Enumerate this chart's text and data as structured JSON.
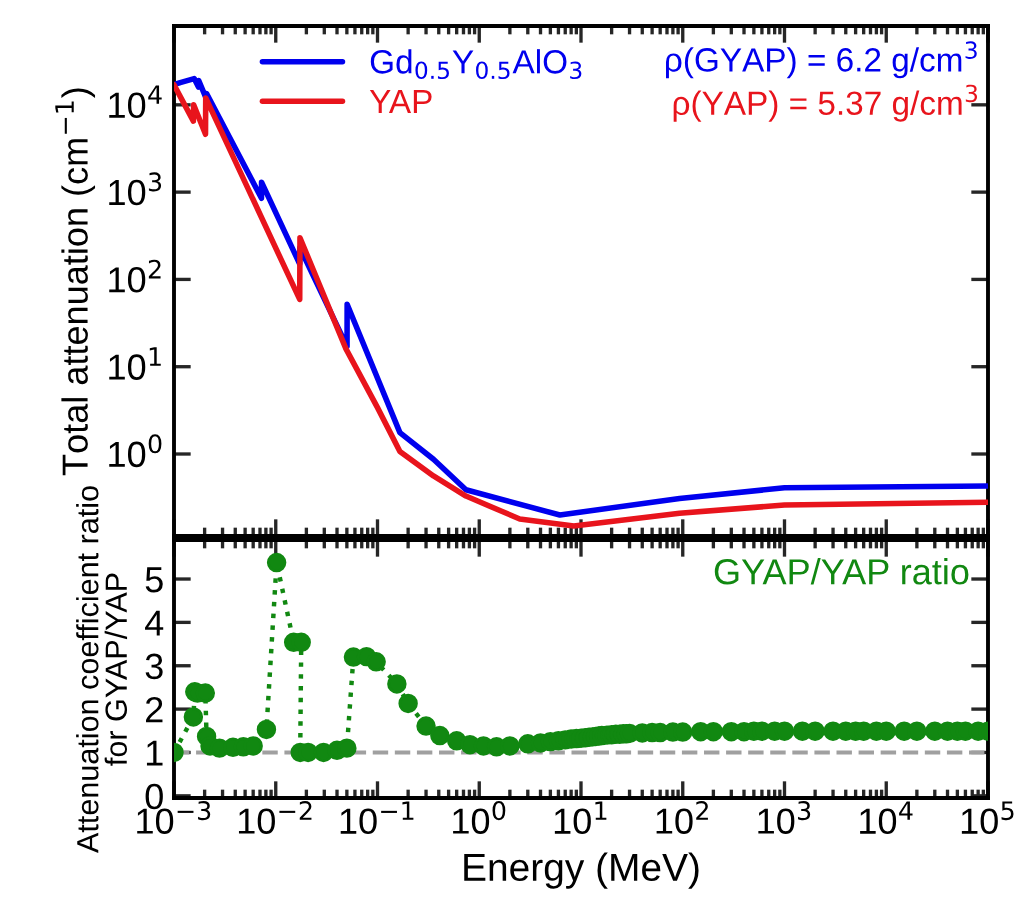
{
  "chart_data": [
    {
      "type": "line",
      "ylabel": "Total attenuation (cm$^{−1}$)",
      "log": "xy",
      "legend": "top left",
      "tick_labels": "y",
      "xlim": [
        0.001,
        100000
      ],
      "xticks": [
        {
          "value": 0.001,
          "label": null
        },
        {
          "value": 0.01,
          "label": null
        },
        {
          "value": 0.1,
          "label": null
        },
        {
          "value": 1,
          "label": null
        },
        {
          "value": 10,
          "label": null
        },
        {
          "value": 100,
          "label": null
        },
        {
          "value": 1000,
          "label": null
        },
        {
          "value": 10000,
          "label": null
        },
        {
          "value": 100000,
          "label": null
        }
      ],
      "ylim": [
        0.115,
        80000
      ],
      "yticks": [
        {
          "value": 1,
          "label": "10$^{0}$"
        },
        {
          "value": 10,
          "label": "10$^{1}$"
        },
        {
          "value": 100,
          "label": "10$^{2}$"
        },
        {
          "value": 1000,
          "label": "10$^{3}$"
        },
        {
          "value": 10000,
          "label": "10$^{4}$"
        }
      ],
      "annotations": [
        "ρ(GYAP) = 6.2 g/cm$^{3}$",
        "ρ(YAP) = 5.37 g/cm$^{3}$"
      ],
      "series": [
        {
          "name": "Gd$_{0.5}$Y$_{0.5}$AlO$_{3}$",
          "color": "#0000ee",
          "x": [
            0.001,
            0.00115,
            0.00158,
            0.00174,
            0.00175,
            0.00208,
            0.00209,
            0.00724,
            0.00725,
            0.0172,
            0.0173,
            0.0502,
            0.0503,
            0.166,
            0.355,
            0.74,
            6.2,
            93,
            1000,
            100000
          ],
          "values": [
            17000,
            18000,
            20000,
            16000,
            19000,
            11700,
            13500,
            850,
            1300,
            150,
            230,
            17,
            52,
            1.76,
            0.87,
            0.39,
            0.2,
            0.31,
            0.41,
            0.43
          ]
        },
        {
          "name": "YAP",
          "color": "#e8141c",
          "x": [
            0.001,
            0.00155,
            0.00156,
            0.00204,
            0.00205,
            0.0172,
            0.0173,
            0.049,
            0.1,
            0.166,
            0.355,
            0.74,
            2.5,
            8.5,
            93,
            1000,
            100000
          ],
          "values": [
            17000,
            6500,
            10000,
            4600,
            12000,
            59,
            300,
            16,
            3.4,
            1.07,
            0.56,
            0.33,
            0.18,
            0.15,
            0.21,
            0.26,
            0.28
          ]
        }
      ]
    },
    {
      "type": "line",
      "xlabel": "Energy (MeV)",
      "ylabel": "Attenuation coefficient ratio\nfor GYAP/YAP",
      "log": "x",
      "legend": "top right",
      "marker": "circle",
      "line_style": "dotted",
      "xlim": [
        0.001,
        100000
      ],
      "xticks": [
        {
          "value": 0.001,
          "label": "10$^{−3}$"
        },
        {
          "value": 0.01,
          "label": "10$^{−2}$"
        },
        {
          "value": 0.1,
          "label": "10$^{−1}$"
        },
        {
          "value": 1,
          "label": "10$^{0}$"
        },
        {
          "value": 10,
          "label": "10$^{1}$"
        },
        {
          "value": 100,
          "label": "10$^{2}$"
        },
        {
          "value": 1000,
          "label": "10$^{3}$"
        },
        {
          "value": 10000,
          "label": "10$^{4}$"
        },
        {
          "value": 100000,
          "label": "10$^{5}$"
        }
      ],
      "ylim": [
        -0.05,
        5.9
      ],
      "yticks": [
        0,
        1,
        2,
        3,
        4,
        5
      ],
      "ref_lines": [
        {
          "axis": "y",
          "value": 1,
          "color": "#a0a0a0",
          "line_style": "dashed"
        }
      ],
      "series": [
        {
          "name": "GYAP/YAP ratio",
          "color": "#118811",
          "x": [
            0.001,
            0.00155,
            0.0016,
            0.0017,
            0.00203,
            0.00209,
            0.00226,
            0.0028,
            0.0038,
            0.0048,
            0.006,
            0.0081,
            0.0102,
            0.015,
            0.0178,
            0.0174,
            0.0208,
            0.0295,
            0.04,
            0.05,
            0.058,
            0.078,
            0.097,
            0.155,
            0.2,
            0.3,
            0.41,
            0.6,
            0.81,
            1.1,
            1.48,
            2.0,
            3.0,
            4.0,
            5.0,
            6.0,
            7.0,
            8.0,
            9.0,
            10,
            11,
            12,
            13,
            14,
            15,
            16,
            18,
            20,
            22,
            24,
            26,
            28,
            30,
            40,
            50,
            60,
            80,
            100,
            150,
            200,
            300,
            400,
            500,
            600,
            800,
            1000,
            1500,
            2000,
            3000,
            4000,
            5000,
            6000,
            8000,
            10000,
            15000,
            20000,
            30000,
            40000,
            50000,
            60000,
            80000,
            100000
          ],
          "values": [
            1.0,
            1.82,
            2.4,
            2.37,
            2.37,
            1.37,
            1.15,
            1.1,
            1.12,
            1.13,
            1.15,
            1.53,
            5.38,
            3.54,
            3.54,
            1.0,
            1.0,
            1.0,
            1.05,
            1.1,
            3.2,
            3.21,
            3.09,
            2.58,
            2.13,
            1.61,
            1.39,
            1.27,
            1.18,
            1.15,
            1.13,
            1.15,
            1.2,
            1.22,
            1.25,
            1.27,
            1.29,
            1.31,
            1.32,
            1.33,
            1.34,
            1.35,
            1.36,
            1.37,
            1.38,
            1.39,
            1.4,
            1.41,
            1.42,
            1.42,
            1.43,
            1.43,
            1.44,
            1.45,
            1.46,
            1.46,
            1.47,
            1.47,
            1.48,
            1.48,
            1.48,
            1.48,
            1.49,
            1.49,
            1.49,
            1.49,
            1.49,
            1.49,
            1.49,
            1.49,
            1.49,
            1.49,
            1.49,
            1.49,
            1.49,
            1.49,
            1.49,
            1.49,
            1.49,
            1.49,
            1.49,
            1.49
          ]
        }
      ]
    }
  ]
}
